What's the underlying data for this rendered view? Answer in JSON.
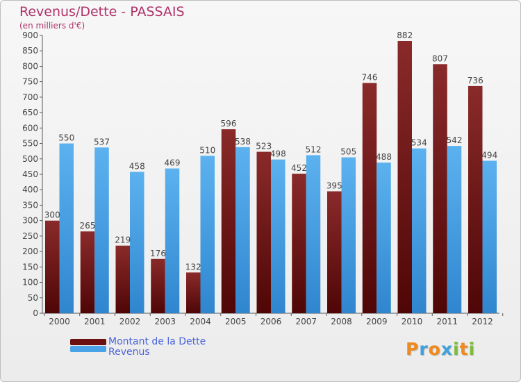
{
  "title": "Revenus/Dette - PASSAIS",
  "subtitle": "(en milliers d'€)",
  "logo": {
    "letters": [
      "P",
      "r",
      "o",
      "x",
      "i",
      "t",
      "i"
    ],
    "colors": [
      "#f08a1c",
      "#3fa2dc",
      "#f08a1c",
      "#3fa2dc",
      "#7dbb3c",
      "#f08a1c",
      "#7dbb3c"
    ]
  },
  "legend": [
    {
      "label": "Montant de la Dette",
      "color": "#6b0f0f"
    },
    {
      "label": "Revenus",
      "color": "#4aa3e6"
    }
  ],
  "chart_data": {
    "type": "bar",
    "title": "Revenus/Dette - PASSAIS",
    "subtitle": "(en milliers d'€)",
    "categories": [
      "2000",
      "2001",
      "2002",
      "2003",
      "2004",
      "2005",
      "2006",
      "2007",
      "2008",
      "2009",
      "2010",
      "2011",
      "2012"
    ],
    "series": [
      {
        "name": "Montant de la Dette",
        "color": "#6b0f0f",
        "values": [
          300,
          265,
          219,
          176,
          132,
          596,
          523,
          452,
          395,
          746,
          882,
          807,
          736
        ]
      },
      {
        "name": "Revenus",
        "color": "#4aa3e6",
        "values": [
          550,
          537,
          458,
          469,
          510,
          538,
          498,
          512,
          505,
          488,
          534,
          542,
          494
        ]
      }
    ],
    "ylim": [
      0,
      900
    ],
    "yticks": [
      0,
      50,
      100,
      150,
      200,
      250,
      300,
      350,
      400,
      450,
      500,
      550,
      600,
      650,
      700,
      750,
      800,
      850,
      900
    ],
    "grid": false,
    "legend_position": "bottom-left"
  }
}
